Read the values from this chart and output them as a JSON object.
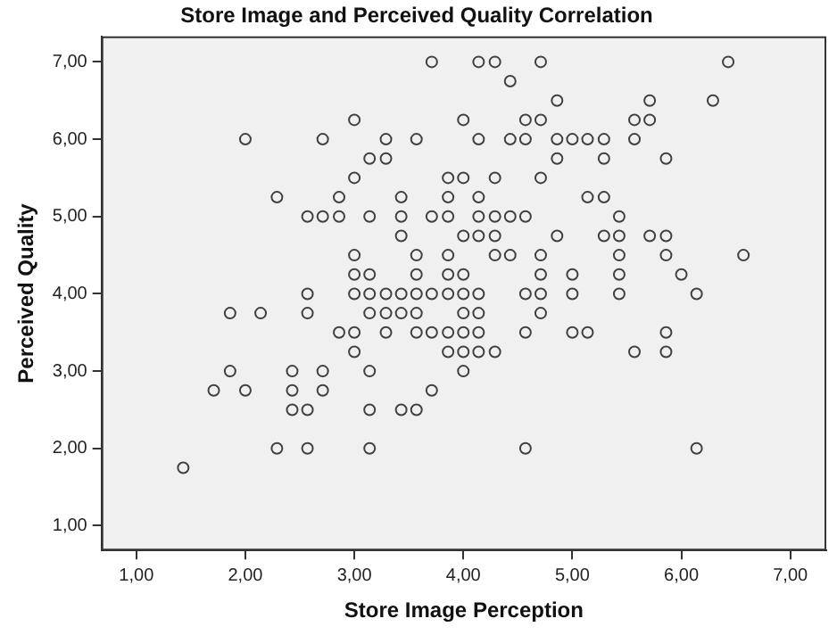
{
  "chart_data": {
    "type": "scatter",
    "title": "Store Image and Perceived Quality Correlation",
    "xlabel": "Store Image Perception",
    "ylabel": "Perceived Quality",
    "xlim": [
      0.68,
      7.33
    ],
    "ylim": [
      0.68,
      7.33
    ],
    "xticks": [
      {
        "value": 1,
        "label": "1,00"
      },
      {
        "value": 2,
        "label": "2,00"
      },
      {
        "value": 3,
        "label": "3,00"
      },
      {
        "value": 4,
        "label": "4,00"
      },
      {
        "value": 5,
        "label": "5,00"
      },
      {
        "value": 6,
        "label": "6,00"
      },
      {
        "value": 7,
        "label": "7,00"
      }
    ],
    "yticks": [
      {
        "value": 1,
        "label": "1,00"
      },
      {
        "value": 2,
        "label": "2,00"
      },
      {
        "value": 3,
        "label": "3,00"
      },
      {
        "value": 4,
        "label": "4,00"
      },
      {
        "value": 5,
        "label": "5,00"
      },
      {
        "value": 6,
        "label": "6,00"
      },
      {
        "value": 7,
        "label": "7,00"
      }
    ],
    "grid": false,
    "legend": false,
    "marker": "circle",
    "series": [
      {
        "color": "#404040",
        "x": [
          3.71,
          4.14,
          4.29,
          4.71,
          6.43,
          4.43,
          4.86,
          5.71,
          6.29,
          3.0,
          4.0,
          4.57,
          4.71,
          5.57,
          5.71,
          2.0,
          2.71,
          3.29,
          3.57,
          4.14,
          4.43,
          4.57,
          4.86,
          5.0,
          5.14,
          5.29,
          5.57,
          3.14,
          3.29,
          4.86,
          5.29,
          5.86,
          3.0,
          3.86,
          4.0,
          4.29,
          4.71,
          2.29,
          2.86,
          3.43,
          3.86,
          4.14,
          5.14,
          5.29,
          2.57,
          2.71,
          2.86,
          3.14,
          3.43,
          3.71,
          3.86,
          4.14,
          4.29,
          4.43,
          4.57,
          5.43,
          3.43,
          4.0,
          4.14,
          4.29,
          4.86,
          5.29,
          5.43,
          5.71,
          5.86,
          3.0,
          3.57,
          3.86,
          4.29,
          4.43,
          4.71,
          5.43,
          5.86,
          6.57,
          3.0,
          3.14,
          3.57,
          3.86,
          4.0,
          4.71,
          5.0,
          5.43,
          6.0,
          2.57,
          3.0,
          3.14,
          3.29,
          3.43,
          3.57,
          3.71,
          3.86,
          4.0,
          4.14,
          4.57,
          4.71,
          5.0,
          5.43,
          6.14,
          1.86,
          2.14,
          2.57,
          3.14,
          3.29,
          3.43,
          3.57,
          4.0,
          4.14,
          4.71,
          2.86,
          3.0,
          3.29,
          3.57,
          3.71,
          3.86,
          4.0,
          4.14,
          4.57,
          5.0,
          5.14,
          5.86,
          3.0,
          3.86,
          4.0,
          4.14,
          4.29,
          5.57,
          5.86,
          1.86,
          2.43,
          2.71,
          3.14,
          4.0,
          1.71,
          2.0,
          2.43,
          2.71,
          3.71,
          2.43,
          2.57,
          3.14,
          3.43,
          3.57,
          2.29,
          2.57,
          3.14,
          4.57,
          6.14,
          1.43
        ],
        "values": [
          7,
          7,
          7,
          7,
          7,
          6.75,
          6.5,
          6.5,
          6.5,
          6.25,
          6.25,
          6.25,
          6.25,
          6.25,
          6.25,
          6,
          6,
          6,
          6,
          6,
          6,
          6,
          6,
          6,
          6,
          6,
          6,
          5.75,
          5.75,
          5.75,
          5.75,
          5.75,
          5.5,
          5.5,
          5.5,
          5.5,
          5.5,
          5.25,
          5.25,
          5.25,
          5.25,
          5.25,
          5.25,
          5.25,
          5,
          5,
          5,
          5,
          5,
          5,
          5,
          5,
          5,
          5,
          5,
          5,
          4.75,
          4.75,
          4.75,
          4.75,
          4.75,
          4.75,
          4.75,
          4.75,
          4.75,
          4.5,
          4.5,
          4.5,
          4.5,
          4.5,
          4.5,
          4.5,
          4.5,
          4.5,
          4.25,
          4.25,
          4.25,
          4.25,
          4.25,
          4.25,
          4.25,
          4.25,
          4.25,
          4,
          4,
          4,
          4,
          4,
          4,
          4,
          4,
          4,
          4,
          4,
          4,
          4,
          4,
          4,
          3.75,
          3.75,
          3.75,
          3.75,
          3.75,
          3.75,
          3.75,
          3.75,
          3.75,
          3.75,
          3.5,
          3.5,
          3.5,
          3.5,
          3.5,
          3.5,
          3.5,
          3.5,
          3.5,
          3.5,
          3.5,
          3.5,
          3.25,
          3.25,
          3.25,
          3.25,
          3.25,
          3.25,
          3.25,
          3,
          3,
          3,
          3,
          3,
          2.75,
          2.75,
          2.75,
          2.75,
          2.75,
          2.5,
          2.5,
          2.5,
          2.5,
          2.5,
          2,
          2,
          2,
          2,
          2,
          1.75
        ]
      }
    ]
  }
}
